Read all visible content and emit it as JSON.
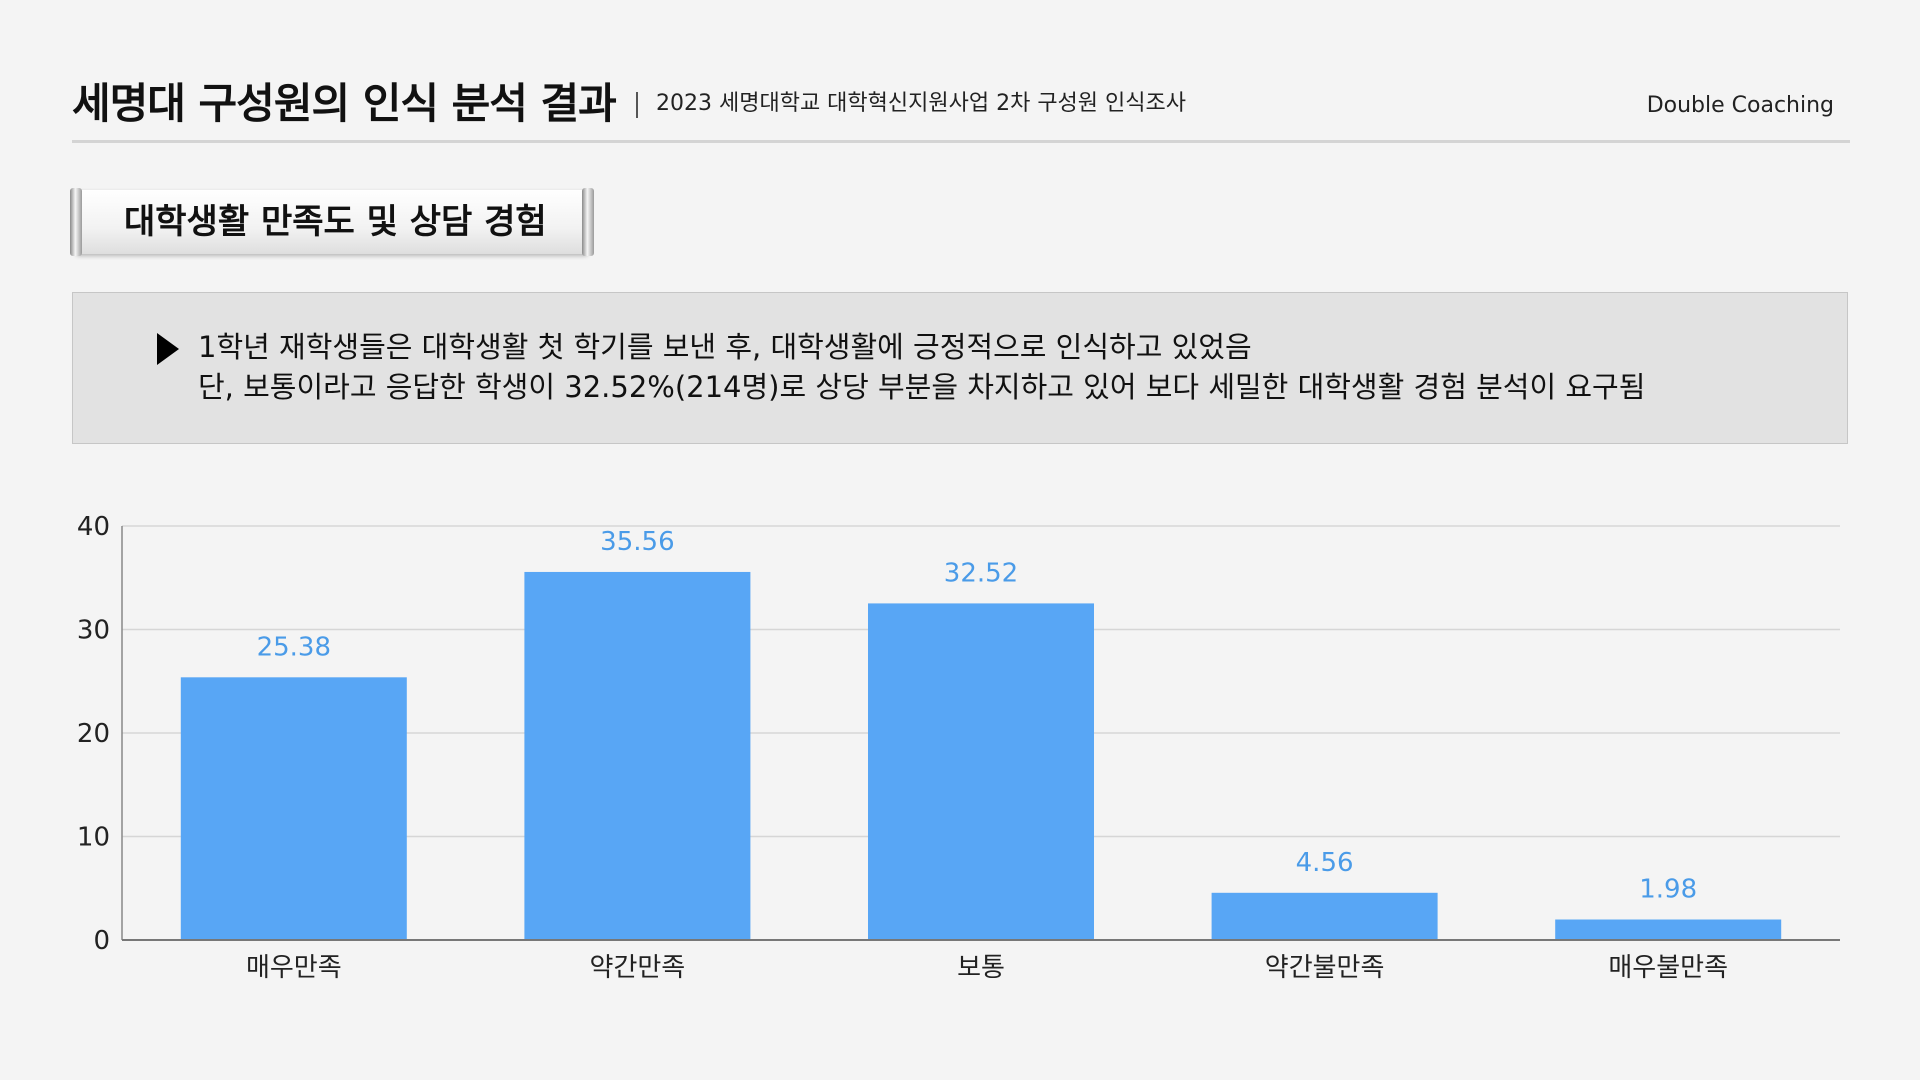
{
  "header": {
    "title": "세명대 구성원의 인식 분석 결과",
    "subtitle": "2023 세명대학교 대학혁신지원사업  2차 구성원 인식조사",
    "brand": "Double Coaching"
  },
  "section": {
    "title": "대학생활 만족도 및 상담 경험"
  },
  "note": {
    "lines": [
      "1학년 재학생들은 대학생활 첫 학기를 보낸 후, 대학생활에 긍정적으로 인식하고 있었음",
      "단, 보통이라고 응답한 학생이 32.52%(214명)로 상당 부분을 차지하고 있어 보다 세밀한 대학생활 경험 분석이 요구됨"
    ]
  },
  "colors": {
    "bar": "#58a6f5",
    "value_label": "#4a9be8",
    "grid": "#d6d6d6"
  },
  "chart_data": {
    "type": "bar",
    "categories": [
      "매우만족",
      "약간만족",
      "보통",
      "약간불만족",
      "매우불만족"
    ],
    "values": [
      25.38,
      35.56,
      32.52,
      4.56,
      1.98
    ],
    "title": "",
    "xlabel": "",
    "ylabel": "",
    "ylim": [
      0,
      40
    ],
    "yticks": [
      0,
      10,
      20,
      30,
      40
    ],
    "grid": true,
    "legend": "none"
  }
}
